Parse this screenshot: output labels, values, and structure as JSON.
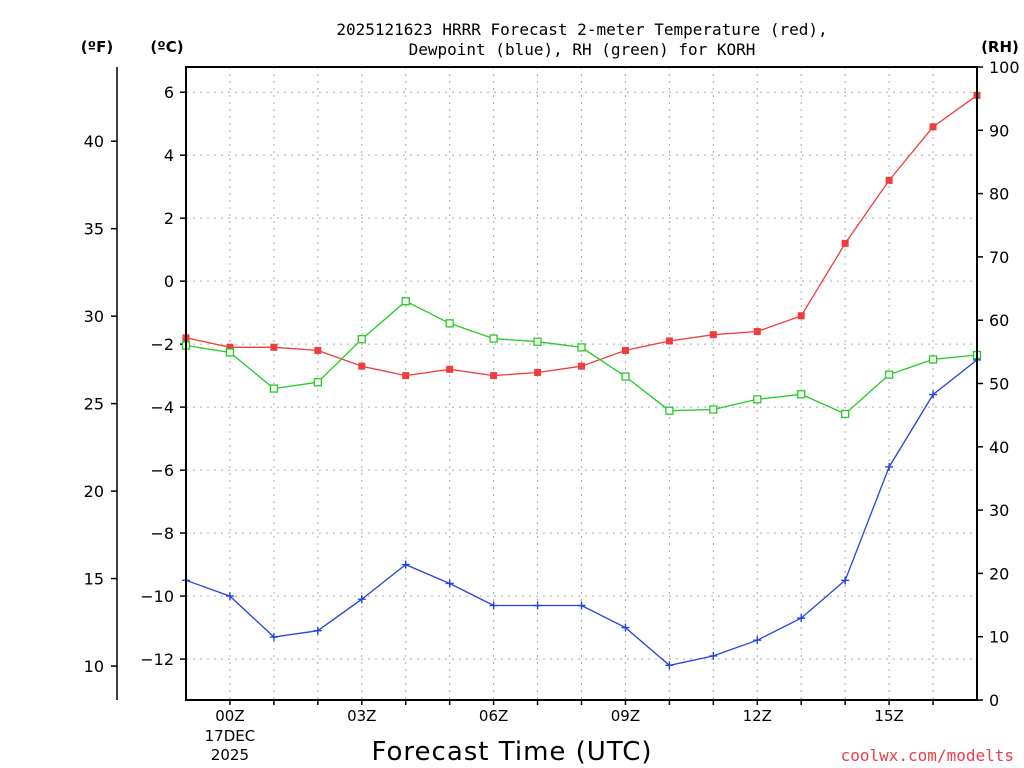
{
  "chart_data": {
    "type": "line",
    "title": "2025121623 HRRR Forecast 2-meter Temperature (red),",
    "subtitle": "Dewpoint (blue), RH (green) for KORH",
    "xlabel": "Forecast Time (UTC)",
    "credit": "coolwx.com/modelts",
    "units": {
      "fahrenheit": "(ºF)",
      "celsius": "(ºC)",
      "rh": "(RH)"
    },
    "x": [
      -1,
      0,
      1,
      2,
      3,
      4,
      5,
      6,
      7,
      8,
      9,
      10,
      11,
      12,
      13,
      14,
      15,
      16,
      17
    ],
    "xlim": [
      -1,
      17
    ],
    "x_ticks": [
      {
        "x": 0,
        "label": "00Z",
        "sub1": "17DEC",
        "sub2": "2025"
      },
      {
        "x": 3,
        "label": "03Z"
      },
      {
        "x": 6,
        "label": "06Z"
      },
      {
        "x": 9,
        "label": "09Z"
      },
      {
        "x": 12,
        "label": "12Z"
      },
      {
        "x": 15,
        "label": "15Z"
      }
    ],
    "celsius_axis": {
      "ylim": [
        -13.3,
        6.8
      ],
      "ticks": [
        6,
        4,
        2,
        0,
        -2,
        -4,
        -6,
        -8,
        -10,
        -12
      ],
      "labels": [
        "6",
        "4",
        "2",
        "0",
        "−2",
        "−4",
        "−6",
        "−8",
        "−10",
        "−12"
      ]
    },
    "fahrenheit_axis": {
      "ticks": [
        40,
        35,
        30,
        25,
        20,
        15,
        10
      ],
      "labels": [
        "40",
        "35",
        "30",
        "25",
        "20",
        "15",
        "10"
      ]
    },
    "rh_axis": {
      "ylim": [
        0,
        100
      ],
      "ticks": [
        0,
        10,
        20,
        30,
        40,
        50,
        60,
        70,
        80,
        90,
        100
      ],
      "labels": [
        "0",
        "10",
        "20",
        "30",
        "40",
        "50",
        "60",
        "70",
        "80",
        "90",
        "100"
      ]
    },
    "series": [
      {
        "name": "2-meter Temperature",
        "color": "#f03c3c",
        "axis": "celsius",
        "marker": "filled-square",
        "values": [
          -1.8,
          -2.1,
          -2.1,
          -2.2,
          -2.7,
          -3.0,
          -2.8,
          -3.0,
          -2.9,
          -2.7,
          -2.2,
          -1.9,
          -1.7,
          -1.6,
          -1.1,
          1.2,
          3.2,
          4.9,
          5.9
        ]
      },
      {
        "name": "Dewpoint",
        "color": "#2244dd",
        "axis": "celsius",
        "marker": "plus",
        "values": [
          -9.5,
          -10.0,
          -11.3,
          -11.1,
          -10.1,
          -9.0,
          -9.6,
          -10.3,
          -10.3,
          -10.3,
          -11.0,
          -12.2,
          -11.9,
          -11.4,
          -10.7,
          -9.5,
          -5.9,
          -3.6,
          -2.5
        ]
      },
      {
        "name": "RH",
        "color": "#22cc22",
        "axis": "rh",
        "marker": "open-square",
        "values": [
          56,
          54.9,
          49.2,
          50.2,
          57,
          63,
          59.5,
          57.1,
          56.6,
          55.7,
          51.1,
          45.7,
          45.9,
          47.5,
          48.3,
          45.2,
          51.4,
          53.8,
          54.5
        ]
      }
    ]
  }
}
